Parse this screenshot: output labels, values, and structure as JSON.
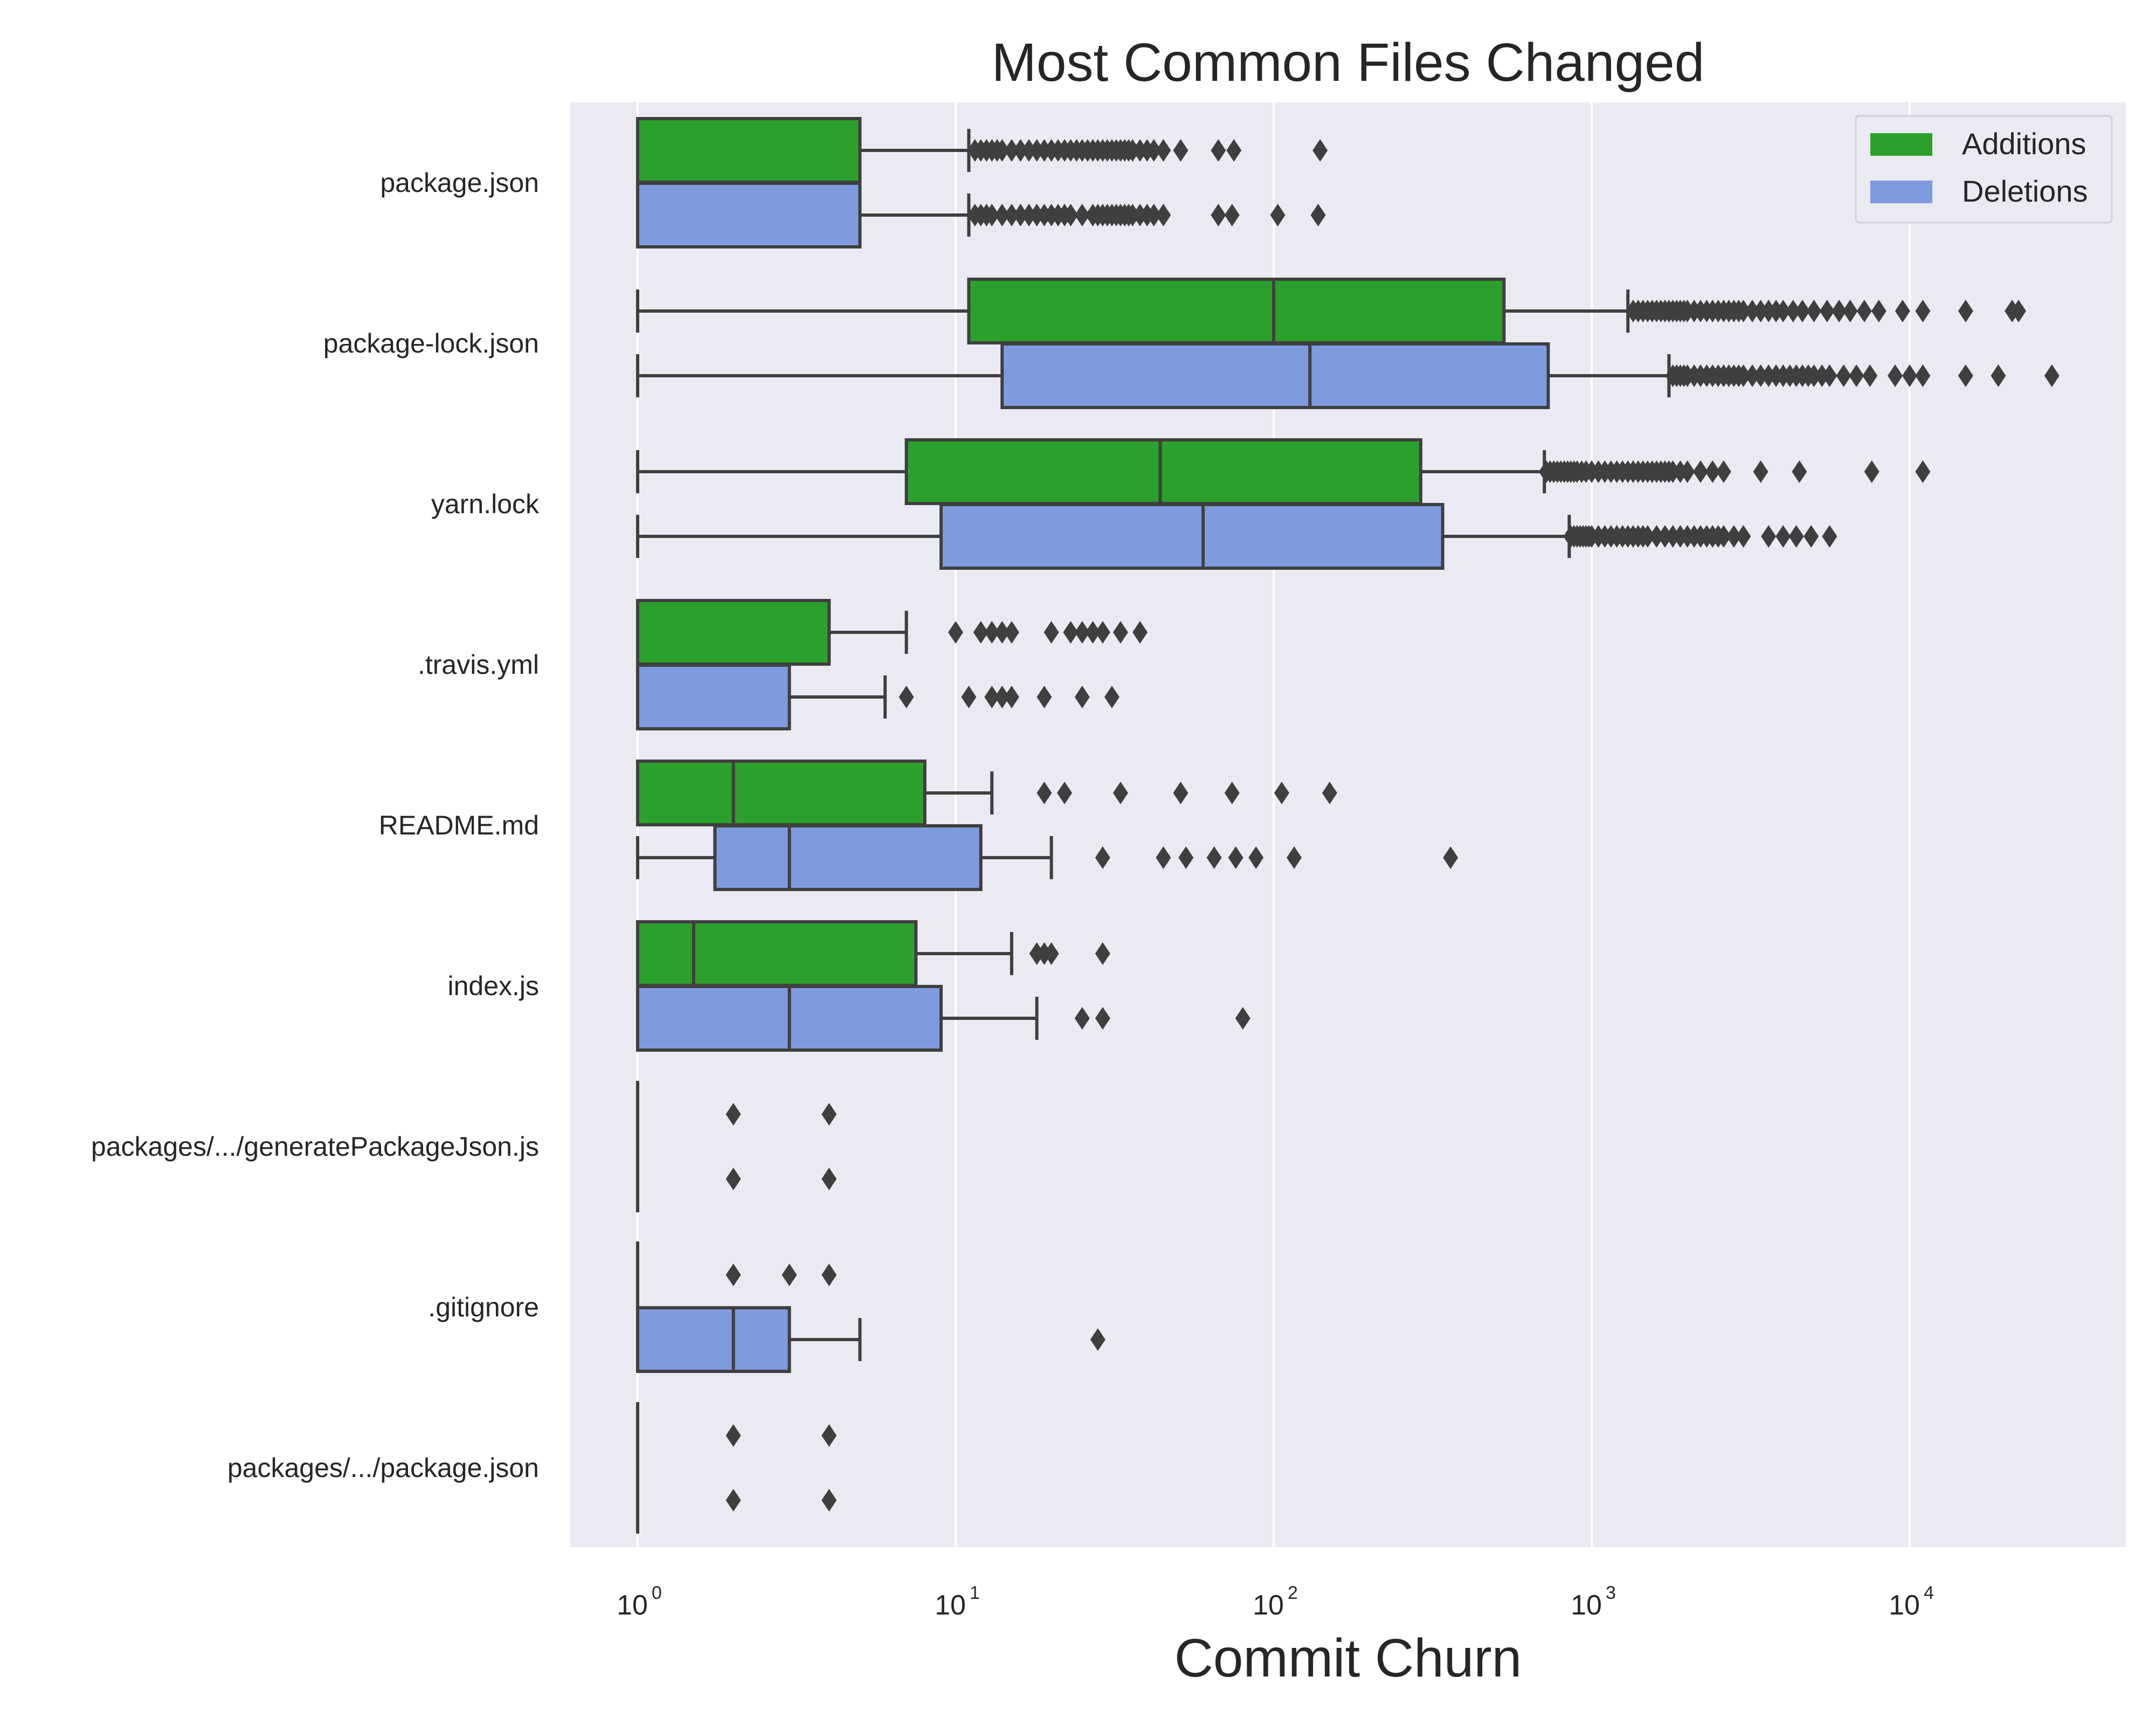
{
  "chart_data": {
    "type": "boxplot",
    "orientation": "horizontal",
    "title": "Most Common Files Changed",
    "xlabel": "Commit Churn",
    "xscale": "log",
    "xlim": [
      0.6,
      50000
    ],
    "xticks": [
      {
        "base": "10",
        "exp": "0",
        "value": 1
      },
      {
        "base": "10",
        "exp": "1",
        "value": 10
      },
      {
        "base": "10",
        "exp": "2",
        "value": 100
      },
      {
        "base": "10",
        "exp": "3",
        "value": 1000
      },
      {
        "base": "10",
        "exp": "4",
        "value": 10000
      }
    ],
    "grid": true,
    "legend": {
      "placement": "top-right",
      "items": [
        {
          "name": "Additions",
          "color": "#2ca02c"
        },
        {
          "name": "Deletions",
          "color": "#7f9bdf"
        }
      ]
    },
    "categories": [
      {
        "label": "package.json",
        "additions": {
          "whislo": 1,
          "q1": 1,
          "med": 1,
          "q3": 5,
          "whishi": 11,
          "fliers": [
            11.5,
            12,
            12.5,
            13,
            13.5,
            14,
            15,
            16,
            17,
            18,
            19,
            20,
            21,
            22,
            23,
            24,
            25,
            26,
            27,
            28,
            29,
            30,
            31,
            32,
            33,
            34,
            35,
            36,
            38,
            40,
            42,
            45,
            51,
            67,
            75,
            140
          ]
        },
        "deletions": {
          "whislo": 1,
          "q1": 1,
          "med": 1,
          "q3": 5,
          "whishi": 11,
          "fliers": [
            11.5,
            12,
            12.5,
            13,
            14,
            15,
            16,
            17,
            18,
            19,
            20,
            21,
            22,
            23,
            25,
            27,
            28,
            29,
            30,
            31,
            32,
            33,
            34,
            35,
            36,
            38,
            40,
            42,
            45,
            67,
            74,
            103,
            138
          ]
        }
      },
      {
        "label": "package-lock.json",
        "additions": {
          "whislo": 1,
          "q1": 11,
          "med": 100,
          "q3": 530,
          "whishi": 1300,
          "fliers": [
            1350,
            1400,
            1450,
            1500,
            1550,
            1600,
            1650,
            1700,
            1750,
            1800,
            1850,
            1900,
            1950,
            2000,
            2100,
            2200,
            2300,
            2400,
            2500,
            2600,
            2700,
            2800,
            2900,
            3000,
            3200,
            3400,
            3600,
            3800,
            4000,
            4300,
            4600,
            5000,
            5500,
            6000,
            6500,
            7200,
            8000,
            9500,
            11000,
            15000,
            21000,
            22000
          ]
        },
        "deletions": {
          "whislo": 1,
          "q1": 14,
          "med": 130,
          "q3": 730,
          "whishi": 1750,
          "fliers": [
            1800,
            1850,
            1900,
            1950,
            2000,
            2100,
            2200,
            2300,
            2400,
            2500,
            2600,
            2700,
            2800,
            2900,
            3000,
            3200,
            3400,
            3600,
            3800,
            4000,
            4200,
            4400,
            4600,
            4800,
            5000,
            5300,
            5600,
            6200,
            6800,
            7500,
            9000,
            10000,
            11000,
            15000,
            19000,
            28000
          ]
        }
      },
      {
        "label": "yarn.lock",
        "additions": {
          "whislo": 1,
          "q1": 7,
          "med": 44,
          "q3": 290,
          "whishi": 710,
          "fliers": [
            720,
            740,
            760,
            780,
            800,
            820,
            840,
            860,
            880,
            900,
            930,
            960,
            1000,
            1050,
            1100,
            1150,
            1200,
            1250,
            1300,
            1350,
            1400,
            1450,
            1500,
            1550,
            1600,
            1650,
            1700,
            1750,
            1800,
            1900,
            2000,
            2200,
            2400,
            2600,
            3400,
            4500,
            7600,
            11000
          ]
        },
        "deletions": {
          "whislo": 1,
          "q1": 9,
          "med": 60,
          "q3": 340,
          "whishi": 850,
          "fliers": [
            860,
            880,
            900,
            920,
            940,
            960,
            980,
            1000,
            1050,
            1100,
            1150,
            1200,
            1250,
            1300,
            1350,
            1400,
            1450,
            1500,
            1600,
            1700,
            1800,
            1900,
            2000,
            2100,
            2200,
            2300,
            2400,
            2500,
            2600,
            2800,
            3000,
            3600,
            4000,
            4400,
            4900,
            5600
          ]
        }
      },
      {
        "label": ".travis.yml",
        "additions": {
          "whislo": 1,
          "q1": 1,
          "med": 1,
          "q3": 4,
          "whishi": 7,
          "fliers": [
            10,
            12,
            13,
            14,
            15,
            20,
            23,
            25,
            27,
            29,
            33,
            38
          ]
        },
        "deletions": {
          "whislo": 1,
          "q1": 1,
          "med": 1,
          "q3": 3,
          "whishi": 6,
          "fliers": [
            7,
            11,
            13,
            14,
            15,
            19,
            25,
            31
          ]
        }
      },
      {
        "label": "README.md",
        "additions": {
          "whislo": 1,
          "q1": 1,
          "med": 2,
          "q3": 8,
          "whishi": 13,
          "fliers": [
            19,
            22,
            33,
            51,
            74,
            106,
            150
          ]
        },
        "deletions": {
          "whislo": 1,
          "q1": 1.75,
          "med": 3,
          "q3": 12,
          "whishi": 20,
          "fliers": [
            29,
            45,
            53,
            65,
            76,
            88,
            116,
            360
          ]
        }
      },
      {
        "label": "index.js",
        "additions": {
          "whislo": 1,
          "q1": 1,
          "med": 1.5,
          "q3": 7.5,
          "whishi": 15,
          "fliers": [
            18,
            19,
            20,
            29
          ]
        },
        "deletions": {
          "whislo": 1,
          "q1": 1,
          "med": 3,
          "q3": 9,
          "whishi": 18,
          "fliers": [
            25,
            29,
            80
          ]
        }
      },
      {
        "label": "packages/.../generatePackageJson.js",
        "additions": {
          "whislo": 1,
          "q1": 1,
          "med": 1,
          "q3": 1,
          "whishi": 1,
          "fliers": [
            2,
            4
          ]
        },
        "deletions": {
          "whislo": 1,
          "q1": 1,
          "med": 1,
          "q3": 1,
          "whishi": 1,
          "fliers": [
            2,
            4
          ]
        }
      },
      {
        "label": ".gitignore",
        "additions": {
          "whislo": 1,
          "q1": 1,
          "med": 1,
          "q3": 1,
          "whishi": 1,
          "fliers": [
            2,
            3,
            4
          ]
        },
        "deletions": {
          "whislo": 1,
          "q1": 1,
          "med": 2,
          "q3": 3,
          "whishi": 5,
          "fliers": [
            28
          ]
        }
      },
      {
        "label": "packages/.../package.json",
        "additions": {
          "whislo": 1,
          "q1": 1,
          "med": 1,
          "q3": 1,
          "whishi": 1,
          "fliers": [
            2,
            4
          ]
        },
        "deletions": {
          "whislo": 1,
          "q1": 1,
          "med": 1,
          "q3": 1,
          "whishi": 1,
          "fliers": [
            2,
            4
          ]
        }
      }
    ]
  }
}
